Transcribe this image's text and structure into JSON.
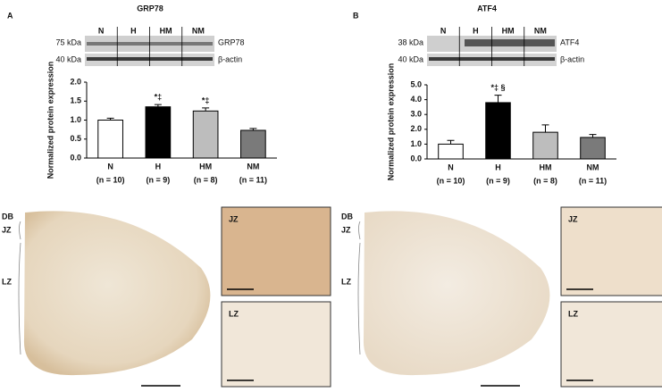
{
  "chart_data": [
    {
      "type": "bar",
      "title": "GRP78",
      "y_label": "Normalized protein expression",
      "categories": [
        "N",
        "H",
        "HM",
        "NM"
      ],
      "sample_sizes": [
        "(n = 10)",
        "(n = 9)",
        "(n = 8)",
        "(n = 11)"
      ],
      "values": [
        1.0,
        1.35,
        1.24,
        0.73
      ],
      "errors": [
        0.05,
        0.06,
        0.08,
        0.05
      ],
      "value_annotations": [
        null,
        "*‡",
        "*‡",
        null
      ],
      "colors": [
        "#ffffff",
        "#000000",
        "#bdbdbd",
        "#7a7a7a"
      ],
      "ylim": [
        0,
        2
      ],
      "yticks": [
        {
          "value": 0,
          "label": "0.0"
        },
        {
          "value": 0.5,
          "label": "0.5"
        },
        {
          "value": 1,
          "label": "1.0"
        },
        {
          "value": 1.5,
          "label": "1.5"
        },
        {
          "value": 2,
          "label": "2.0"
        }
      ]
    },
    {
      "type": "bar",
      "title": "ATF4",
      "y_label": "Normalized protein expression",
      "categories": [
        "N",
        "H",
        "HM",
        "NM"
      ],
      "sample_sizes": [
        "(n = 10)",
        "(n = 9)",
        "(n = 8)",
        "(n = 11)"
      ],
      "values": [
        1.0,
        3.8,
        1.8,
        1.45
      ],
      "errors": [
        0.25,
        0.5,
        0.5,
        0.2
      ],
      "value_annotations": [
        null,
        "*‡ §",
        null,
        null
      ],
      "colors": [
        "#ffffff",
        "#000000",
        "#bdbdbd",
        "#7a7a7a"
      ],
      "ylim": [
        0,
        5
      ],
      "yticks": [
        {
          "value": 0,
          "label": "0.0"
        },
        {
          "value": 1,
          "label": "1.0"
        },
        {
          "value": 2,
          "label": "2.0"
        },
        {
          "value": 3,
          "label": "3.0"
        },
        {
          "value": 4,
          "label": "4.0"
        },
        {
          "value": 5,
          "label": "5.0"
        }
      ]
    }
  ],
  "panels": [
    {
      "label": "A",
      "blot": {
        "lanes": [
          "N",
          "H",
          "HM",
          "NM"
        ],
        "rows": [
          {
            "size": "75 kDa",
            "protein": "GRP78"
          },
          {
            "size": "40 kDa",
            "protein": "β-actin"
          }
        ]
      },
      "zones": [
        "DB",
        "JZ",
        "LZ"
      ],
      "insets": [
        "JZ",
        "LZ"
      ]
    },
    {
      "label": "B",
      "blot": {
        "lanes": [
          "N",
          "H",
          "HM",
          "NM"
        ],
        "rows": [
          {
            "size": "38 kDa",
            "protein": "ATF4"
          },
          {
            "size": "40 kDa",
            "protein": "β-actin"
          }
        ]
      },
      "zones": [
        "DB",
        "JZ",
        "LZ"
      ],
      "insets": [
        "JZ",
        "LZ"
      ]
    }
  ]
}
